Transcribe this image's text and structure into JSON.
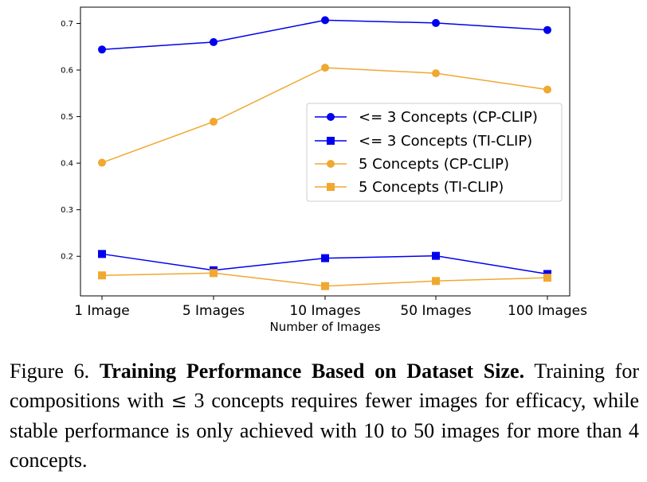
{
  "chart_data": {
    "type": "line",
    "title": "",
    "xlabel": "Number of Images",
    "ylabel": "",
    "categories": [
      "1 Image",
      "5 Images",
      "10 Images",
      "50 Images",
      "100 Images"
    ],
    "ylim": [
      0.115,
      0.735
    ],
    "yticks": [
      "0.2",
      "0.3",
      "0.4",
      "0.5",
      "0.6",
      "0.7"
    ],
    "ytick_values": [
      0.2,
      0.3,
      0.4,
      0.5,
      0.6,
      0.7
    ],
    "grid": false,
    "legend_position": "center-right",
    "series": [
      {
        "name": "<= 3 Concepts (CP-CLIP)",
        "marker": "circle",
        "color": "#0000ee",
        "values": [
          0.644,
          0.66,
          0.707,
          0.701,
          0.686
        ]
      },
      {
        "name": "<= 3 Concepts (TI-CLIP)",
        "marker": "square",
        "color": "#0000ee",
        "values": [
          0.205,
          0.17,
          0.196,
          0.201,
          0.162
        ]
      },
      {
        "name": "5 Concepts (CP-CLIP)",
        "marker": "circle",
        "color": "#f0a830",
        "values": [
          0.401,
          0.489,
          0.605,
          0.593,
          0.558
        ]
      },
      {
        "name": "5 Concepts (TI-CLIP)",
        "marker": "square",
        "color": "#f0a830",
        "values": [
          0.159,
          0.164,
          0.136,
          0.147,
          0.154
        ]
      }
    ]
  },
  "caption": {
    "label": "Figure 6.",
    "bold": "Training Performance Based on Dataset Size.",
    "text_before": "Training for compositions with",
    "symbol": "≤",
    "text_after": "3 concepts requires fewer images for efficacy, while stable performance is only achieved with 10 to 50 images for more than 4 concepts."
  }
}
